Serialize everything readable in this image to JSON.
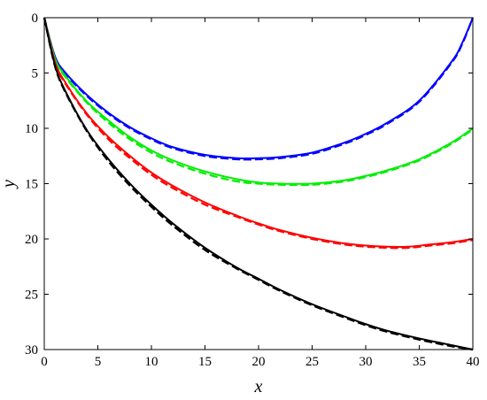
{
  "chart_data": {
    "type": "line",
    "title": "",
    "xlabel": "x",
    "ylabel": "y",
    "xlim": [
      0,
      40
    ],
    "ylim": [
      0,
      30
    ],
    "y_axis_inverted": true,
    "grid": false,
    "legend": "none",
    "x_ticks": [
      "0",
      "5",
      "10",
      "15",
      "20",
      "25",
      "30",
      "35",
      "40"
    ],
    "y_ticks": [
      "0",
      "5",
      "10",
      "15",
      "20",
      "25",
      "30"
    ],
    "series": [
      {
        "color": "#0000ff",
        "x": [
          0,
          1,
          2,
          4,
          6,
          8,
          10,
          12,
          15,
          18,
          20,
          22,
          25,
          28,
          30,
          32,
          35,
          38,
          39,
          40
        ],
        "solid_y": [
          0,
          3.5,
          5.0,
          7.0,
          8.6,
          9.9,
          10.9,
          11.7,
          12.4,
          12.7,
          12.7,
          12.6,
          12.2,
          11.3,
          10.5,
          9.5,
          7.5,
          4.0,
          2.3,
          0
        ],
        "dashed_y": [
          0,
          3.6,
          5.1,
          7.1,
          8.7,
          10.0,
          11.0,
          11.8,
          12.5,
          12.8,
          12.8,
          12.7,
          12.3,
          11.4,
          10.6,
          9.6,
          7.6,
          4.1,
          2.4,
          0
        ]
      },
      {
        "color": "#00ee00",
        "x": [
          0,
          1,
          2,
          4,
          6,
          8,
          10,
          12,
          15,
          18,
          20,
          22,
          25,
          28,
          30,
          32,
          35,
          38,
          40
        ],
        "solid_y": [
          0,
          3.7,
          5.3,
          7.6,
          9.3,
          10.8,
          12.0,
          12.9,
          13.9,
          14.6,
          14.9,
          15.0,
          15.0,
          14.7,
          14.3,
          13.8,
          12.8,
          11.3,
          10.0
        ],
        "dashed_y": [
          0,
          3.8,
          5.4,
          7.7,
          9.5,
          11.0,
          12.2,
          13.1,
          14.1,
          14.8,
          15.0,
          15.1,
          15.1,
          14.8,
          14.4,
          13.9,
          12.9,
          11.4,
          10.1
        ]
      },
      {
        "color": "#ff0000",
        "x": [
          0,
          1,
          2,
          4,
          6,
          8,
          10,
          12,
          15,
          18,
          20,
          22,
          25,
          28,
          30,
          32,
          34,
          36,
          38,
          40
        ],
        "solid_y": [
          0,
          4.0,
          5.9,
          8.7,
          10.8,
          12.5,
          14.0,
          15.2,
          16.7,
          17.9,
          18.6,
          19.2,
          19.9,
          20.4,
          20.6,
          20.7,
          20.7,
          20.5,
          20.3,
          20.0
        ],
        "dashed_y": [
          0,
          4.1,
          6.0,
          8.8,
          11.0,
          12.7,
          14.2,
          15.4,
          16.9,
          18.0,
          18.7,
          19.3,
          20.0,
          20.5,
          20.7,
          20.8,
          20.8,
          20.6,
          20.4,
          20.1
        ]
      },
      {
        "color": "#000000",
        "x": [
          0,
          1,
          2,
          4,
          6,
          8,
          10,
          12,
          15,
          18,
          20,
          22,
          25,
          28,
          30,
          32,
          35,
          38,
          40
        ],
        "solid_y": [
          0,
          4.3,
          6.7,
          10.2,
          12.8,
          15.0,
          16.9,
          18.6,
          20.8,
          22.6,
          23.6,
          24.6,
          25.9,
          27.0,
          27.7,
          28.3,
          29.0,
          29.6,
          30.0
        ],
        "dashed_y": [
          0,
          4.4,
          6.8,
          10.3,
          13.0,
          15.2,
          17.1,
          18.8,
          21.0,
          22.7,
          23.7,
          24.7,
          26.0,
          27.1,
          27.8,
          28.4,
          29.1,
          29.7,
          30.0
        ]
      }
    ]
  }
}
